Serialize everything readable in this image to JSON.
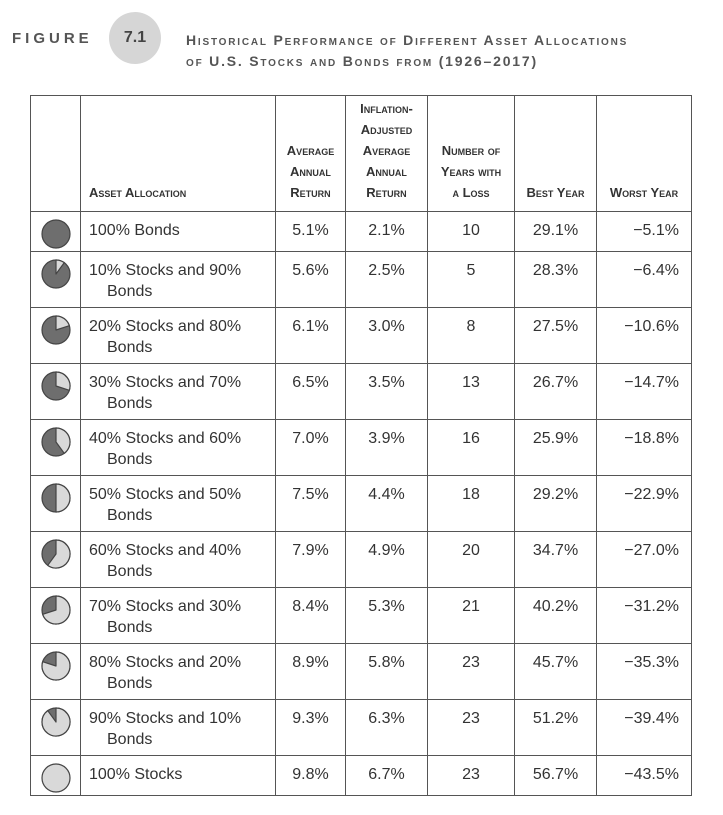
{
  "figure": {
    "label": "FIGURE",
    "number": "7.1",
    "title_line1": "Historical Performance of Different Asset Allocations",
    "title_line2": "of U.S. Stocks and Bonds from (1926–2017)"
  },
  "table": {
    "headers": {
      "allocation": "Asset Allocation",
      "avg_return_1": "Average",
      "avg_return_2": "Annual",
      "avg_return_3": "Return",
      "infl_1": "Inflation-",
      "infl_2": "Adjusted",
      "infl_3": "Average",
      "infl_4": "Annual",
      "infl_5": "Return",
      "loss_1": "Number of",
      "loss_2": "Years with",
      "loss_3": "a Loss",
      "best": "Best Year",
      "worst": "Worst Year"
    },
    "rows": [
      {
        "stock_fraction": 0.0,
        "line1": "100% Bonds",
        "line2": "",
        "avg": "5.1%",
        "infl": "2.1%",
        "loss": "10",
        "best": "29.1%",
        "worst": "−5.1%"
      },
      {
        "stock_fraction": 0.1,
        "line1": "10% Stocks and 90%",
        "line2": "Bonds",
        "avg": "5.6%",
        "infl": "2.5%",
        "loss": "5",
        "best": "28.3%",
        "worst": "−6.4%"
      },
      {
        "stock_fraction": 0.2,
        "line1": "20% Stocks and 80%",
        "line2": "Bonds",
        "avg": "6.1%",
        "infl": "3.0%",
        "loss": "8",
        "best": "27.5%",
        "worst": "−10.6%"
      },
      {
        "stock_fraction": 0.3,
        "line1": "30% Stocks and 70%",
        "line2": "Bonds",
        "avg": "6.5%",
        "infl": "3.5%",
        "loss": "13",
        "best": "26.7%",
        "worst": "−14.7%"
      },
      {
        "stock_fraction": 0.4,
        "line1": "40% Stocks and 60%",
        "line2": "Bonds",
        "avg": "7.0%",
        "infl": "3.9%",
        "loss": "16",
        "best": "25.9%",
        "worst": "−18.8%"
      },
      {
        "stock_fraction": 0.5,
        "line1": "50% Stocks and 50%",
        "line2": "Bonds",
        "avg": "7.5%",
        "infl": "4.4%",
        "loss": "18",
        "best": "29.2%",
        "worst": "−22.9%"
      },
      {
        "stock_fraction": 0.6,
        "line1": "60% Stocks and 40%",
        "line2": "Bonds",
        "avg": "7.9%",
        "infl": "4.9%",
        "loss": "20",
        "best": "34.7%",
        "worst": "−27.0%"
      },
      {
        "stock_fraction": 0.7,
        "line1": "70% Stocks and 30%",
        "line2": "Bonds",
        "avg": "8.4%",
        "infl": "5.3%",
        "loss": "21",
        "best": "40.2%",
        "worst": "−31.2%"
      },
      {
        "stock_fraction": 0.8,
        "line1": "80% Stocks and 20%",
        "line2": "Bonds",
        "avg": "8.9%",
        "infl": "5.8%",
        "loss": "23",
        "best": "45.7%",
        "worst": "−35.3%"
      },
      {
        "stock_fraction": 0.9,
        "line1": "90% Stocks and 10%",
        "line2": "Bonds",
        "avg": "9.3%",
        "infl": "6.3%",
        "loss": "23",
        "best": "51.2%",
        "worst": "−39.4%"
      },
      {
        "stock_fraction": 1.0,
        "line1": "100% Stocks",
        "line2": "",
        "avg": "9.8%",
        "infl": "6.7%",
        "loss": "23",
        "best": "56.7%",
        "worst": "−43.5%"
      }
    ]
  },
  "colors": {
    "bonds": "#6e6e6e",
    "stocks": "#d9d9d9",
    "outline": "#444444"
  }
}
